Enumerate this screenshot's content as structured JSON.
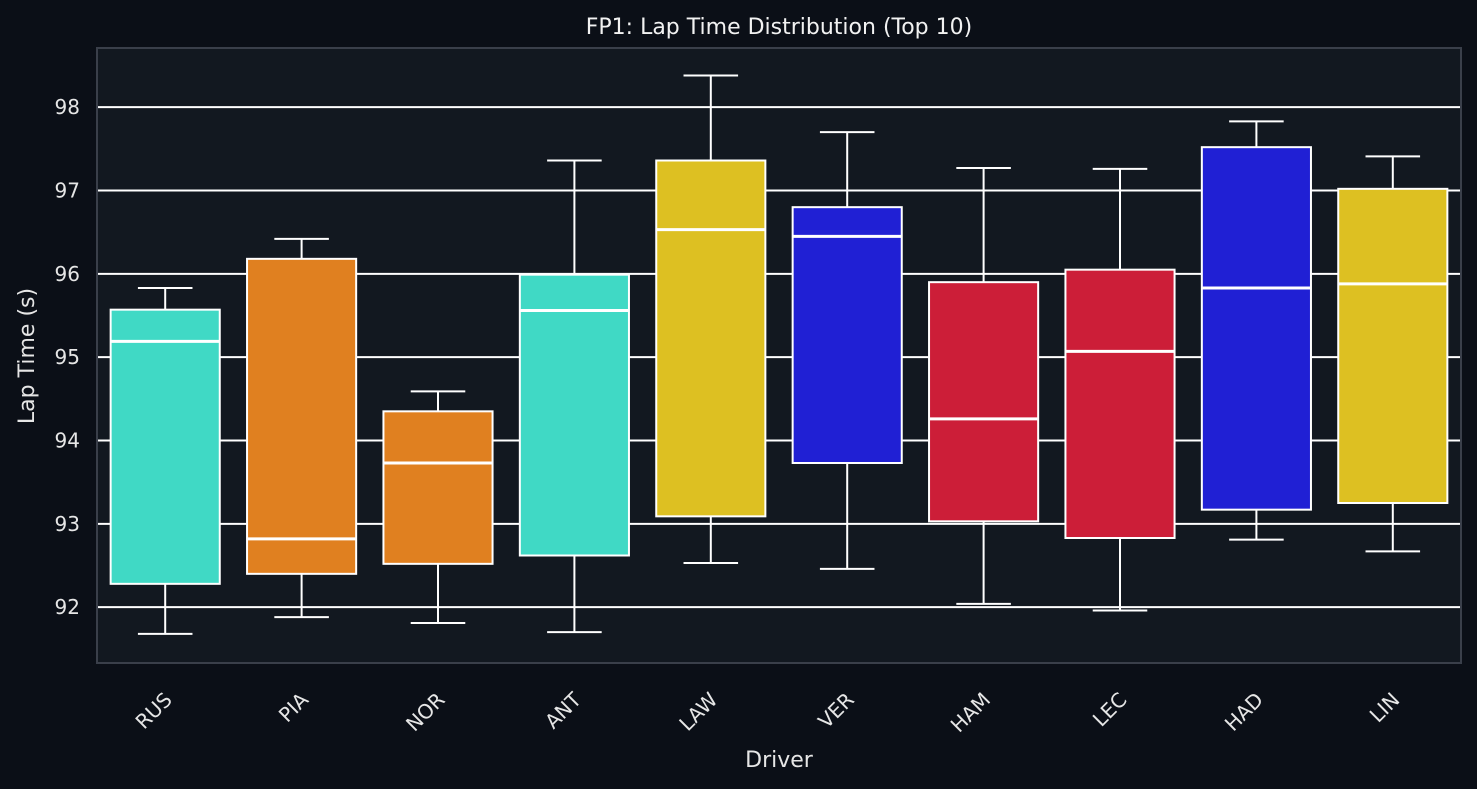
{
  "colors": {
    "figure_bg": "#0b0f17",
    "axes_bg": "#121820",
    "grid": "#ffffff",
    "frame": "#3a3f4a",
    "box_edge": "#ffffff",
    "text": "#e6e6e6"
  },
  "chart_data": {
    "type": "box",
    "title": "FP1: Lap Time Distribution (Top 10)",
    "xlabel": "Driver",
    "ylabel": "Lap Time (s)",
    "ylim": [
      91.33,
      98.71
    ],
    "yticks": [
      92,
      93,
      94,
      95,
      96,
      97,
      98
    ],
    "grid": true,
    "x_tick_rotation": -45,
    "categories": [
      "RUS",
      "PIA",
      "NOR",
      "ANT",
      "LAW",
      "VER",
      "HAM",
      "LEC",
      "HAD",
      "LIN"
    ],
    "boxes": [
      {
        "driver": "RUS",
        "whisker_low": 91.68,
        "q1": 92.28,
        "median": 95.19,
        "q3": 95.57,
        "whisker_high": 95.83,
        "color": "#40d9c5"
      },
      {
        "driver": "PIA",
        "whisker_low": 91.88,
        "q1": 92.4,
        "median": 92.82,
        "q3": 96.18,
        "whisker_high": 96.42,
        "color": "#e08020"
      },
      {
        "driver": "NOR",
        "whisker_low": 91.81,
        "q1": 92.52,
        "median": 93.73,
        "q3": 94.35,
        "whisker_high": 94.59,
        "color": "#e08020"
      },
      {
        "driver": "ANT",
        "whisker_low": 91.7,
        "q1": 92.62,
        "median": 95.56,
        "q3": 95.99,
        "whisker_high": 97.36,
        "color": "#40d9c5"
      },
      {
        "driver": "LAW",
        "whisker_low": 92.53,
        "q1": 93.09,
        "median": 96.53,
        "q3": 97.36,
        "whisker_high": 98.38,
        "color": "#ddc022"
      },
      {
        "driver": "VER",
        "whisker_low": 92.46,
        "q1": 93.73,
        "median": 96.45,
        "q3": 96.8,
        "whisker_high": 97.7,
        "color": "#2020d4"
      },
      {
        "driver": "HAM",
        "whisker_low": 92.04,
        "q1": 93.03,
        "median": 94.26,
        "q3": 95.9,
        "whisker_high": 97.27,
        "color": "#cc1e38"
      },
      {
        "driver": "LEC",
        "whisker_low": 91.96,
        "q1": 92.83,
        "median": 95.07,
        "q3": 96.05,
        "whisker_high": 97.26,
        "color": "#cc1e38"
      },
      {
        "driver": "HAD",
        "whisker_low": 92.81,
        "q1": 93.17,
        "median": 95.83,
        "q3": 97.52,
        "whisker_high": 97.83,
        "color": "#2020d4"
      },
      {
        "driver": "LIN",
        "whisker_low": 92.67,
        "q1": 93.25,
        "median": 95.88,
        "q3": 97.02,
        "whisker_high": 97.41,
        "color": "#ddc022"
      }
    ]
  }
}
